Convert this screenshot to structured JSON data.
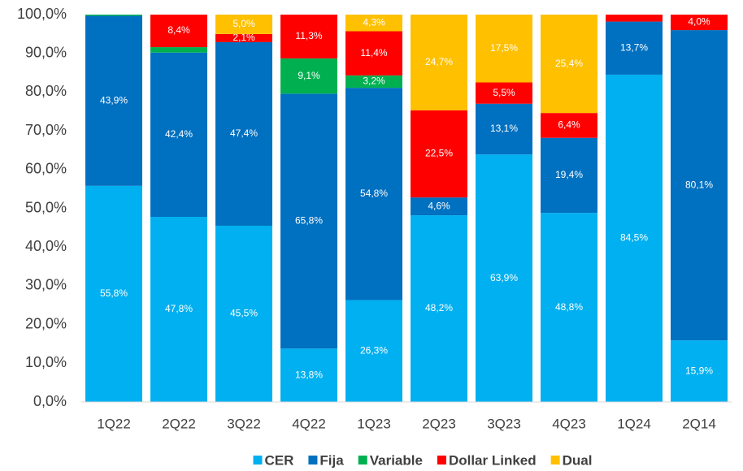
{
  "chart_data": {
    "type": "bar",
    "stacked": true,
    "categories": [
      "1Q22",
      "2Q22",
      "3Q22",
      "4Q22",
      "1Q23",
      "2Q23",
      "3Q23",
      "4Q23",
      "1Q24",
      "2Q14"
    ],
    "series": [
      {
        "name": "CER",
        "color": "#00b0f0",
        "values": [
          55.8,
          47.8,
          45.5,
          13.8,
          26.3,
          48.2,
          63.9,
          48.8,
          84.5,
          15.9
        ],
        "value_labels": [
          "55,8%",
          "47,8%",
          "45,5%",
          "13,8%",
          "26,3%",
          "48,2%",
          "63,9%",
          "48,8%",
          "84,5%",
          "15,9%"
        ]
      },
      {
        "name": "Fija",
        "color": "#0070c0",
        "values": [
          43.9,
          42.4,
          47.4,
          65.8,
          54.8,
          4.6,
          13.1,
          19.4,
          13.7,
          80.1
        ],
        "value_labels": [
          "43,9%",
          "42,4%",
          "47,4%",
          "65,8%",
          "54,8%",
          "4,6%",
          "13,1%",
          "19,4%",
          "13,7%",
          "80,1%"
        ]
      },
      {
        "name": "Variable",
        "color": "#00b050",
        "values": [
          0.3,
          1.4,
          null,
          9.1,
          3.2,
          null,
          null,
          null,
          null,
          null
        ],
        "value_labels": [
          null,
          null,
          null,
          "9,1%",
          "3,2%",
          null,
          null,
          null,
          null,
          null
        ]
      },
      {
        "name": "Dollar Linked",
        "color": "#ff0000",
        "values": [
          null,
          8.4,
          2.1,
          11.3,
          11.4,
          22.5,
          5.5,
          6.4,
          1.8,
          4.0
        ],
        "value_labels": [
          null,
          "8,4%",
          "2,1%",
          "11,3%",
          "11,4%",
          "22,5%",
          "5,5%",
          "6,4%",
          null,
          "4,0%"
        ]
      },
      {
        "name": "Dual",
        "color": "#ffc000",
        "values": [
          null,
          null,
          5.0,
          null,
          4.3,
          24.7,
          17.5,
          25.4,
          null,
          null
        ],
        "value_labels": [
          null,
          null,
          "5,0%",
          null,
          "4,3%",
          "24,7%",
          "17,5%",
          "25,4%",
          null,
          null
        ]
      }
    ],
    "ylim": [
      0,
      100
    ],
    "yticks": [
      {
        "value": 0,
        "label": "0,0%"
      },
      {
        "value": 10,
        "label": "10,0%"
      },
      {
        "value": 20,
        "label": "20,0%"
      },
      {
        "value": 30,
        "label": "30,0%"
      },
      {
        "value": 40,
        "label": "40,0%"
      },
      {
        "value": 50,
        "label": "50,0%"
      },
      {
        "value": 60,
        "label": "60,0%"
      },
      {
        "value": 70,
        "label": "70,0%"
      },
      {
        "value": 80,
        "label": "80,0%"
      },
      {
        "value": 90,
        "label": "90,0%"
      },
      {
        "value": 100,
        "label": "100,0%"
      }
    ],
    "grid": false,
    "legend": "bottom"
  }
}
